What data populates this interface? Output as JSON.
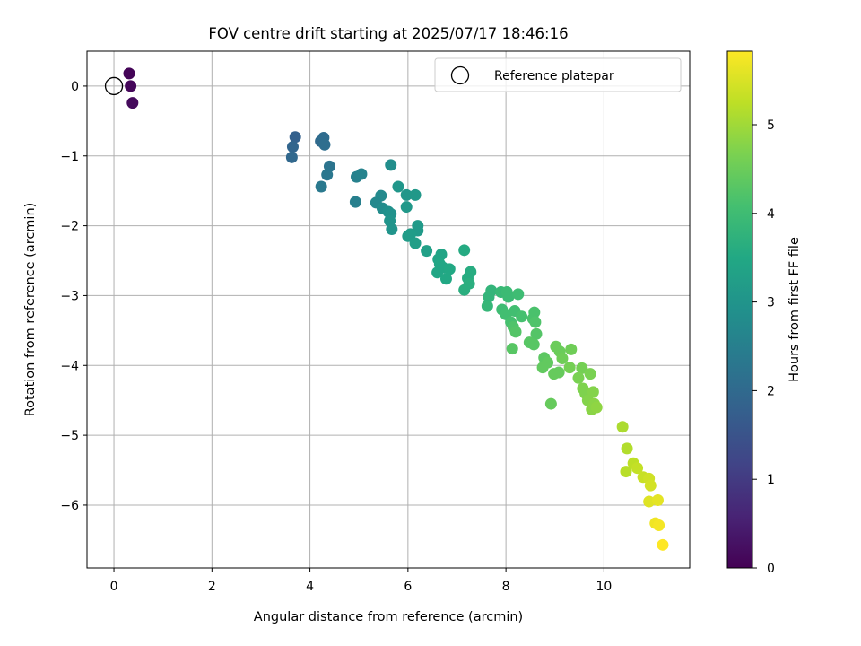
{
  "chart_data": {
    "type": "scatter",
    "title": "FOV centre drift starting at 2025/07/17 18:46:16",
    "xlabel": "Angular distance from reference (arcmin)",
    "ylabel": "Rotation from reference (arcmin)",
    "colorbar_label": "Hours from first FF file",
    "xlim": [
      -0.55,
      11.75
    ],
    "ylim": [
      -6.9,
      0.5
    ],
    "clim": [
      0,
      5.83
    ],
    "xticks": [
      0,
      2,
      4,
      6,
      8,
      10
    ],
    "yticks": [
      0,
      -1,
      -2,
      -3,
      -4,
      -5,
      -6
    ],
    "cticks": [
      0,
      1,
      2,
      3,
      4,
      5
    ],
    "grid": true,
    "legend": {
      "position": "top-right",
      "entries": [
        "Reference platepar"
      ]
    },
    "reference_point": {
      "x": 0,
      "y": 0
    },
    "colormap": "viridis",
    "points": [
      {
        "x": 0.31,
        "y": 0.18,
        "t": 0.05
      },
      {
        "x": 0.34,
        "y": 0.0,
        "t": 0.1
      },
      {
        "x": 0.38,
        "y": -0.24,
        "t": 0.15
      },
      {
        "x": 3.7,
        "y": -0.73,
        "t": 1.8
      },
      {
        "x": 3.65,
        "y": -0.87,
        "t": 1.9
      },
      {
        "x": 3.63,
        "y": -1.02,
        "t": 1.95
      },
      {
        "x": 4.22,
        "y": -0.79,
        "t": 2.0
      },
      {
        "x": 4.28,
        "y": -0.74,
        "t": 2.05
      },
      {
        "x": 4.3,
        "y": -0.84,
        "t": 2.1
      },
      {
        "x": 4.4,
        "y": -1.15,
        "t": 2.25
      },
      {
        "x": 4.35,
        "y": -1.27,
        "t": 2.3
      },
      {
        "x": 4.23,
        "y": -1.44,
        "t": 2.35
      },
      {
        "x": 4.95,
        "y": -1.3,
        "t": 2.55
      },
      {
        "x": 5.05,
        "y": -1.26,
        "t": 2.6
      },
      {
        "x": 4.93,
        "y": -1.66,
        "t": 2.5
      },
      {
        "x": 5.65,
        "y": -1.13,
        "t": 2.85
      },
      {
        "x": 5.45,
        "y": -1.57,
        "t": 2.75
      },
      {
        "x": 5.35,
        "y": -1.67,
        "t": 2.7
      },
      {
        "x": 5.48,
        "y": -1.75,
        "t": 2.8
      },
      {
        "x": 5.6,
        "y": -1.8,
        "t": 2.9
      },
      {
        "x": 5.65,
        "y": -1.83,
        "t": 2.95
      },
      {
        "x": 5.63,
        "y": -1.93,
        "t": 3.0
      },
      {
        "x": 5.67,
        "y": -2.05,
        "t": 3.0
      },
      {
        "x": 5.8,
        "y": -1.44,
        "t": 3.05
      },
      {
        "x": 5.97,
        "y": -1.56,
        "t": 3.05
      },
      {
        "x": 6.15,
        "y": -1.56,
        "t": 3.1
      },
      {
        "x": 5.97,
        "y": -1.73,
        "t": 3.1
      },
      {
        "x": 6.2,
        "y": -2.0,
        "t": 3.15
      },
      {
        "x": 6.2,
        "y": -2.07,
        "t": 3.15
      },
      {
        "x": 6.05,
        "y": -2.12,
        "t": 3.2
      },
      {
        "x": 6.0,
        "y": -2.15,
        "t": 3.2
      },
      {
        "x": 6.15,
        "y": -2.25,
        "t": 3.25
      },
      {
        "x": 6.38,
        "y": -2.36,
        "t": 3.3
      },
      {
        "x": 6.68,
        "y": -2.41,
        "t": 3.4
      },
      {
        "x": 6.62,
        "y": -2.48,
        "t": 3.4
      },
      {
        "x": 6.65,
        "y": -2.55,
        "t": 3.45
      },
      {
        "x": 6.72,
        "y": -2.6,
        "t": 3.45
      },
      {
        "x": 6.85,
        "y": -2.62,
        "t": 3.5
      },
      {
        "x": 6.6,
        "y": -2.67,
        "t": 3.45
      },
      {
        "x": 6.78,
        "y": -2.76,
        "t": 3.5
      },
      {
        "x": 7.15,
        "y": -2.35,
        "t": 3.55
      },
      {
        "x": 7.28,
        "y": -2.66,
        "t": 3.6
      },
      {
        "x": 7.22,
        "y": -2.75,
        "t": 3.6
      },
      {
        "x": 7.25,
        "y": -2.83,
        "t": 3.65
      },
      {
        "x": 7.15,
        "y": -2.92,
        "t": 3.65
      },
      {
        "x": 7.7,
        "y": -2.93,
        "t": 3.8
      },
      {
        "x": 7.65,
        "y": -3.02,
        "t": 3.8
      },
      {
        "x": 7.62,
        "y": -3.15,
        "t": 3.85
      },
      {
        "x": 7.9,
        "y": -2.95,
        "t": 3.9
      },
      {
        "x": 8.02,
        "y": -2.95,
        "t": 3.95
      },
      {
        "x": 8.05,
        "y": -3.02,
        "t": 3.95
      },
      {
        "x": 8.25,
        "y": -2.98,
        "t": 4.0
      },
      {
        "x": 7.92,
        "y": -3.2,
        "t": 4.0
      },
      {
        "x": 8.0,
        "y": -3.27,
        "t": 4.05
      },
      {
        "x": 8.18,
        "y": -3.22,
        "t": 4.05
      },
      {
        "x": 8.32,
        "y": -3.3,
        "t": 4.1
      },
      {
        "x": 8.1,
        "y": -3.38,
        "t": 4.1
      },
      {
        "x": 8.58,
        "y": -3.24,
        "t": 4.15
      },
      {
        "x": 8.55,
        "y": -3.33,
        "t": 4.15
      },
      {
        "x": 8.6,
        "y": -3.38,
        "t": 4.2
      },
      {
        "x": 8.15,
        "y": -3.45,
        "t": 4.2
      },
      {
        "x": 8.2,
        "y": -3.52,
        "t": 4.25
      },
      {
        "x": 8.62,
        "y": -3.55,
        "t": 4.25
      },
      {
        "x": 8.48,
        "y": -3.67,
        "t": 4.3
      },
      {
        "x": 8.57,
        "y": -3.7,
        "t": 4.3
      },
      {
        "x": 8.13,
        "y": -3.76,
        "t": 4.3
      },
      {
        "x": 8.78,
        "y": -3.89,
        "t": 4.35
      },
      {
        "x": 8.85,
        "y": -3.96,
        "t": 4.4
      },
      {
        "x": 8.75,
        "y": -4.03,
        "t": 4.4
      },
      {
        "x": 8.98,
        "y": -4.12,
        "t": 4.45
      },
      {
        "x": 9.08,
        "y": -4.1,
        "t": 4.45
      },
      {
        "x": 9.02,
        "y": -3.73,
        "t": 4.5
      },
      {
        "x": 9.1,
        "y": -3.8,
        "t": 4.5
      },
      {
        "x": 9.15,
        "y": -3.9,
        "t": 4.55
      },
      {
        "x": 9.33,
        "y": -3.77,
        "t": 4.55
      },
      {
        "x": 9.3,
        "y": -4.03,
        "t": 4.6
      },
      {
        "x": 9.55,
        "y": -4.04,
        "t": 4.6
      },
      {
        "x": 9.48,
        "y": -4.18,
        "t": 4.65
      },
      {
        "x": 9.72,
        "y": -4.12,
        "t": 4.65
      },
      {
        "x": 9.57,
        "y": -4.33,
        "t": 4.7
      },
      {
        "x": 9.62,
        "y": -4.4,
        "t": 4.7
      },
      {
        "x": 9.78,
        "y": -4.38,
        "t": 4.75
      },
      {
        "x": 9.67,
        "y": -4.5,
        "t": 4.75
      },
      {
        "x": 9.8,
        "y": -4.55,
        "t": 4.8
      },
      {
        "x": 9.75,
        "y": -4.63,
        "t": 4.8
      },
      {
        "x": 9.85,
        "y": -4.6,
        "t": 4.85
      },
      {
        "x": 8.92,
        "y": -4.55,
        "t": 4.45
      },
      {
        "x": 10.38,
        "y": -4.88,
        "t": 5.1
      },
      {
        "x": 10.47,
        "y": -5.19,
        "t": 5.15
      },
      {
        "x": 10.45,
        "y": -5.52,
        "t": 5.2
      },
      {
        "x": 10.6,
        "y": -5.4,
        "t": 5.25
      },
      {
        "x": 10.68,
        "y": -5.47,
        "t": 5.3
      },
      {
        "x": 10.8,
        "y": -5.6,
        "t": 5.35
      },
      {
        "x": 10.92,
        "y": -5.62,
        "t": 5.4
      },
      {
        "x": 10.95,
        "y": -5.72,
        "t": 5.45
      },
      {
        "x": 10.92,
        "y": -5.95,
        "t": 5.55
      },
      {
        "x": 11.1,
        "y": -5.93,
        "t": 5.6
      },
      {
        "x": 11.05,
        "y": -6.26,
        "t": 5.7
      },
      {
        "x": 11.12,
        "y": -6.29,
        "t": 5.75
      },
      {
        "x": 11.2,
        "y": -6.57,
        "t": 5.83
      }
    ]
  }
}
